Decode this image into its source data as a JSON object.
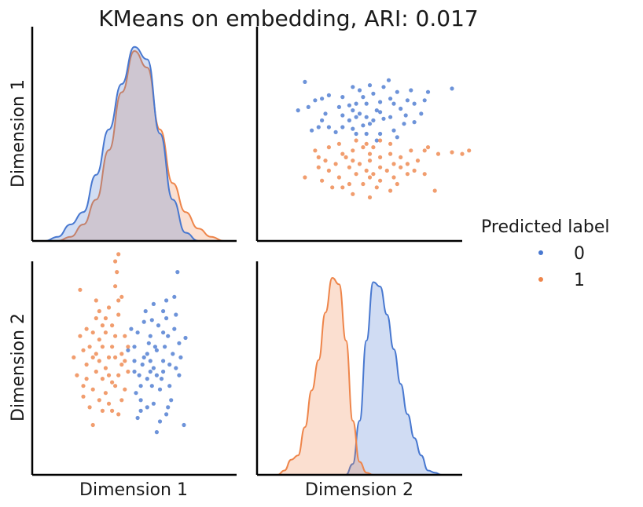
{
  "chart_data": {
    "type": "pairplot",
    "title": "KMeans on embedding, ARI: 0.017",
    "variables": [
      "Dimension 1",
      "Dimension 2"
    ],
    "legend": {
      "title": "Predicted label",
      "entries": [
        {
          "label": "0",
          "color": "#4878d0"
        },
        {
          "label": "1",
          "color": "#ee854a"
        }
      ],
      "placement": "right"
    },
    "diagonal": {
      "kind": "kde",
      "dim1": {
        "xlim": [
          -3.2,
          3.2
        ],
        "ylim": [
          0,
          0.5
        ],
        "series": [
          {
            "name": "0",
            "x": [
              -2.8,
              -2.4,
              -2.0,
              -1.6,
              -1.2,
              -0.8,
              -0.4,
              0.0,
              0.4,
              0.8,
              1.2,
              1.6,
              2.0,
              2.4,
              2.8
            ],
            "y": [
              0.0,
              0.01,
              0.04,
              0.07,
              0.16,
              0.27,
              0.38,
              0.47,
              0.44,
              0.26,
              0.1,
              0.02,
              0.0,
              0.0,
              0.0
            ]
          },
          {
            "name": "1",
            "x": [
              -2.8,
              -2.4,
              -2.0,
              -1.6,
              -1.2,
              -0.8,
              -0.4,
              0.0,
              0.4,
              0.8,
              1.2,
              1.6,
              2.0,
              2.4,
              2.8
            ],
            "y": [
              0.0,
              0.0,
              0.01,
              0.04,
              0.1,
              0.22,
              0.36,
              0.46,
              0.42,
              0.27,
              0.14,
              0.07,
              0.03,
              0.01,
              0.0
            ]
          }
        ]
      },
      "dim2": {
        "xlim": [
          -3.0,
          3.0
        ],
        "ylim": [
          0,
          0.95
        ],
        "series": [
          {
            "name": "0",
            "x": [
              -0.4,
              -0.2,
              0.0,
              0.2,
              0.4,
              0.6,
              0.8,
              1.0,
              1.2,
              1.4,
              1.6,
              1.8,
              2.0,
              2.2,
              2.4
            ],
            "y": [
              0.0,
              0.05,
              0.25,
              0.62,
              0.89,
              0.87,
              0.74,
              0.58,
              0.42,
              0.28,
              0.17,
              0.09,
              0.02,
              0.01,
              0.0
            ]
          },
          {
            "name": "1",
            "x": [
              -2.4,
              -2.2,
              -2.0,
              -1.8,
              -1.6,
              -1.4,
              -1.2,
              -1.0,
              -0.8,
              -0.6,
              -0.4,
              -0.2,
              0.0,
              0.2,
              0.4
            ],
            "y": [
              0.0,
              0.02,
              0.07,
              0.09,
              0.22,
              0.39,
              0.53,
              0.75,
              0.91,
              0.88,
              0.62,
              0.25,
              0.06,
              0.01,
              0.0
            ]
          }
        ]
      }
    },
    "scatter": {
      "xlim_dim1": [
        -3.2,
        3.2
      ],
      "xlim_dim2": [
        -3.0,
        3.0
      ],
      "series": [
        {
          "name": "0",
          "points": [
            [
              1.35,
              2.7
            ],
            [
              1.25,
              2.0
            ],
            [
              1.3,
              1.5
            ],
            [
              1.0,
              1.4
            ],
            [
              1.6,
              0.85
            ],
            [
              0.5,
              0.2
            ],
            [
              0.9,
              -0.1
            ],
            [
              0.2,
              -0.9
            ],
            [
              1.0,
              -1.3
            ],
            [
              1.55,
              -1.6
            ],
            [
              -0.2,
              0.5
            ],
            [
              0.5,
              0.9
            ],
            [
              1.4,
              -0.2
            ],
            [
              0.0,
              -0.1
            ],
            [
              0.55,
              1.35
            ],
            [
              0.65,
              0.6
            ],
            [
              0.3,
              0.3
            ],
            [
              0.9,
              0.2
            ],
            [
              1.3,
              0.0
            ],
            [
              0.1,
              1.0
            ],
            [
              0.7,
              0.5
            ],
            [
              1.05,
              0.9
            ],
            [
              1.1,
              -0.5
            ],
            [
              0.8,
              -0.6
            ],
            [
              0.2,
              -0.5
            ],
            [
              0.4,
              -0.3
            ],
            [
              0.6,
              0.0
            ],
            [
              0.5,
              -0.1
            ],
            [
              1.2,
              0.4
            ],
            [
              0.0,
              0.6
            ],
            [
              0.1,
              -1.4
            ],
            [
              0.7,
              -1.8
            ],
            [
              0.4,
              -1.1
            ],
            [
              1.0,
              1.9
            ],
            [
              0.35,
              1.6
            ],
            [
              0.75,
              1.2
            ],
            [
              0.9,
              1.0
            ],
            [
              0.05,
              -0.7
            ],
            [
              0.6,
              -1.0
            ],
            [
              1.15,
              -0.9
            ],
            [
              0.25,
              0.1
            ],
            [
              1.45,
              0.3
            ],
            [
              0.85,
              -0.3
            ],
            [
              0.45,
              0.7
            ],
            [
              1.25,
              1.1
            ],
            [
              0.15,
              -0.2
            ],
            [
              0.95,
              0.6
            ],
            [
              0.55,
              -0.5
            ],
            [
              0.3,
              1.3
            ],
            [
              1.05,
              -1.1
            ],
            [
              0.7,
              -0.2
            ],
            [
              0.0,
              0.2
            ],
            [
              1.4,
              0.7
            ],
            [
              0.9,
              1.6
            ],
            [
              0.4,
              0.4
            ],
            [
              0.6,
              1.8
            ],
            [
              -0.1,
              1.1
            ],
            [
              1.1,
              0.1
            ],
            [
              0.2,
              -1.2
            ],
            [
              0.8,
              -1.5
            ]
          ]
        },
        {
          "name": "1",
          "points": [
            [
              -0.5,
              3.2
            ],
            [
              -0.6,
              3.0
            ],
            [
              -0.55,
              2.7
            ],
            [
              -0.6,
              2.3
            ],
            [
              -1.7,
              2.2
            ],
            [
              -0.4,
              2.0
            ],
            [
              -0.5,
              1.9
            ],
            [
              -0.8,
              1.7
            ],
            [
              -1.2,
              1.4
            ],
            [
              -1.5,
              1.1
            ],
            [
              -0.9,
              1.0
            ],
            [
              -1.1,
              0.8
            ],
            [
              -0.7,
              0.6
            ],
            [
              -1.2,
              0.4
            ],
            [
              -1.5,
              0.1
            ],
            [
              -0.9,
              0.0
            ],
            [
              -0.3,
              0.2
            ],
            [
              -1.0,
              -0.3
            ],
            [
              -1.3,
              -0.6
            ],
            [
              -1.6,
              -0.8
            ],
            [
              -0.8,
              -1.0
            ],
            [
              -0.5,
              -1.3
            ],
            [
              -1.3,
              -1.6
            ],
            [
              -1.8,
              -0.2
            ],
            [
              -1.4,
              -1.1
            ],
            [
              -0.6,
              -0.5
            ],
            [
              -0.9,
              -0.7
            ],
            [
              -0.2,
              -0.1
            ],
            [
              -1.1,
              0.2
            ],
            [
              -0.7,
              1.2
            ],
            [
              -1.2,
              1.9
            ],
            [
              -0.4,
              -0.9
            ],
            [
              -1.0,
              -1.2
            ],
            [
              -0.3,
              0.9
            ],
            [
              -1.6,
              0.5
            ],
            [
              -1.3,
              1.0
            ],
            [
              -0.6,
              0.3
            ],
            [
              -0.2,
              0.6
            ],
            [
              -0.8,
              -0.2
            ],
            [
              -1.1,
              -0.9
            ],
            [
              -0.5,
              1.5
            ],
            [
              -1.4,
              0.6
            ],
            [
              -0.7,
              -0.4
            ],
            [
              -1.9,
              0.3
            ],
            [
              -1.0,
              0.6
            ],
            [
              -0.4,
              0.1
            ],
            [
              -1.5,
              -0.3
            ],
            [
              -0.9,
              1.4
            ],
            [
              -0.3,
              -0.6
            ],
            [
              -1.2,
              -0.1
            ],
            [
              -0.6,
              0.9
            ],
            [
              -1.7,
              0.9
            ],
            [
              -0.8,
              0.3
            ],
            [
              -1.0,
              1.2
            ],
            [
              -0.5,
              -0.2
            ],
            [
              -1.3,
              0.3
            ],
            [
              -0.7,
              -1.2
            ],
            [
              -1.1,
              1.6
            ],
            [
              -0.4,
              0.4
            ],
            [
              -1.6,
              -0.5
            ]
          ]
        }
      ]
    }
  }
}
